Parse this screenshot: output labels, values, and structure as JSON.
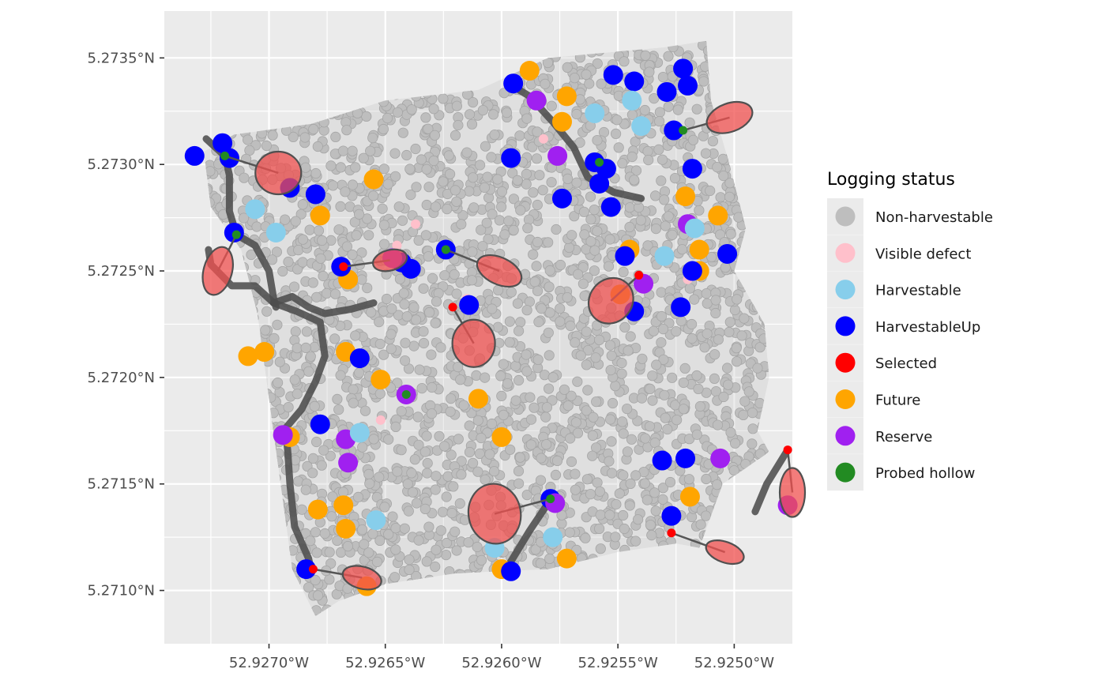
{
  "chart_data": {
    "type": "scatter",
    "title": "",
    "xlabel": "",
    "ylabel": "",
    "x_axis": {
      "ticks": [
        52.927,
        52.9265,
        52.926,
        52.9255,
        52.925
      ],
      "tick_labels": [
        "52.9270°W",
        "52.9265°W",
        "52.9260°W",
        "52.9255°W",
        "52.9250°W"
      ],
      "lim": [
        52.92745,
        52.92475
      ]
    },
    "y_axis": {
      "ticks": [
        5.271,
        5.2715,
        5.272,
        5.2725,
        5.273,
        5.2735
      ],
      "tick_labels": [
        "5.2710°N",
        "5.2715°N",
        "5.2720°N",
        "5.2725°N",
        "5.2730°N",
        "5.2735°N"
      ],
      "lim": [
        5.27075,
        5.27372
      ]
    },
    "grid": true,
    "legend": {
      "title": "Logging status",
      "position": "right",
      "entries": [
        {
          "label": "Non-harvestable",
          "color": "#bebebe"
        },
        {
          "label": "Visible defect",
          "color": "#ffc0cb"
        },
        {
          "label": "Harvestable",
          "color": "#87ceeb"
        },
        {
          "label": "HarvestableUp",
          "color": "#0000ff"
        },
        {
          "label": "Selected",
          "color": "#ff0000"
        },
        {
          "label": "Future",
          "color": "#ffa500"
        },
        {
          "label": "Reserve",
          "color": "#a020f0"
        },
        {
          "label": "Probed hollow",
          "color": "#228b22"
        }
      ]
    },
    "background_cloud": {
      "status": "Non-harvestable",
      "polygon": [
        [
          52.92728,
          5.27306
        ],
        [
          52.92715,
          5.27314
        ],
        [
          52.92682,
          5.27319
        ],
        [
          52.9265,
          5.2733
        ],
        [
          52.9261,
          5.27335
        ],
        [
          52.9258,
          5.2735
        ],
        [
          52.9253,
          5.27355
        ],
        [
          52.92512,
          5.27358
        ],
        [
          52.9251,
          5.2733
        ],
        [
          52.92502,
          5.273
        ],
        [
          52.92495,
          5.2727
        ],
        [
          52.925,
          5.2725
        ],
        [
          52.92487,
          5.27225
        ],
        [
          52.92485,
          5.272
        ],
        [
          52.9249,
          5.27175
        ],
        [
          52.92485,
          5.27165
        ],
        [
          52.92505,
          5.2715
        ],
        [
          52.92515,
          5.2712
        ],
        [
          52.92525,
          5.27122
        ],
        [
          52.9255,
          5.27118
        ],
        [
          52.9258,
          5.2711
        ],
        [
          52.9262,
          5.27108
        ],
        [
          52.9265,
          5.27103
        ],
        [
          52.9267,
          5.27095
        ],
        [
          52.9268,
          5.27088
        ],
        [
          52.9269,
          5.2711
        ],
        [
          52.927,
          5.2719
        ],
        [
          52.92705,
          5.2723
        ],
        [
          52.92712,
          5.2726
        ],
        [
          52.92725,
          5.2728
        ],
        [
          52.92728,
          5.27306
        ]
      ],
      "scattered_light_pink": [
        [
          52.92582,
          5.27312
        ],
        [
          52.92637,
          5.27272
        ],
        [
          52.92645,
          5.27262
        ],
        [
          52.92615,
          5.27237
        ],
        [
          52.92652,
          5.2718
        ],
        [
          52.9252,
          5.27246
        ],
        [
          52.92516,
          5.27248
        ]
      ]
    },
    "trees": [
      {
        "x": 52.92732,
        "y": 5.27304,
        "status": "HarvestableUp"
      },
      {
        "x": 52.9272,
        "y": 5.2731,
        "status": "HarvestableUp"
      },
      {
        "x": 52.92717,
        "y": 5.27303,
        "status": "HarvestableUp"
      },
      {
        "x": 52.92691,
        "y": 5.27289,
        "status": "HarvestableUp"
      },
      {
        "x": 52.9268,
        "y": 5.27286,
        "status": "HarvestableUp"
      },
      {
        "x": 52.92706,
        "y": 5.27279,
        "status": "Harvestable"
      },
      {
        "x": 52.92697,
        "y": 5.27268,
        "status": "Harvestable"
      },
      {
        "x": 52.92715,
        "y": 5.27268,
        "status": "HarvestableUp"
      },
      {
        "x": 52.92678,
        "y": 5.27276,
        "status": "Future"
      },
      {
        "x": 52.92655,
        "y": 5.27293,
        "status": "Future"
      },
      {
        "x": 52.92666,
        "y": 5.27246,
        "status": "Future"
      },
      {
        "x": 52.92669,
        "y": 5.27252,
        "status": "HarvestableUp"
      },
      {
        "x": 52.92643,
        "y": 5.27254,
        "status": "HarvestableUp"
      },
      {
        "x": 52.92647,
        "y": 5.27256,
        "status": "Reserve"
      },
      {
        "x": 52.92639,
        "y": 5.27251,
        "status": "HarvestableUp"
      },
      {
        "x": 52.92624,
        "y": 5.2726,
        "status": "HarvestableUp"
      },
      {
        "x": 52.92614,
        "y": 5.27234,
        "status": "HarvestableUp"
      },
      {
        "x": 52.92709,
        "y": 5.2721,
        "status": "Future"
      },
      {
        "x": 52.92702,
        "y": 5.27212,
        "status": "Future"
      },
      {
        "x": 52.92667,
        "y": 5.27212,
        "status": "Future"
      },
      {
        "x": 52.92661,
        "y": 5.27209,
        "status": "HarvestableUp"
      },
      {
        "x": 52.92652,
        "y": 5.27199,
        "status": "Future"
      },
      {
        "x": 52.92641,
        "y": 5.27192,
        "status": "Reserve"
      },
      {
        "x": 52.9261,
        "y": 5.2719,
        "status": "Future"
      },
      {
        "x": 52.92678,
        "y": 5.27178,
        "status": "HarvestableUp"
      },
      {
        "x": 52.92691,
        "y": 5.27172,
        "status": "Future"
      },
      {
        "x": 52.92694,
        "y": 5.27173,
        "status": "Reserve"
      },
      {
        "x": 52.92667,
        "y": 5.27171,
        "status": "Reserve"
      },
      {
        "x": 52.92661,
        "y": 5.27174,
        "status": "Harvestable"
      },
      {
        "x": 52.92666,
        "y": 5.2716,
        "status": "Reserve"
      },
      {
        "x": 52.926,
        "y": 5.27172,
        "status": "Future"
      },
      {
        "x": 52.92679,
        "y": 5.27138,
        "status": "Future"
      },
      {
        "x": 52.92668,
        "y": 5.2714,
        "status": "Future"
      },
      {
        "x": 52.92667,
        "y": 5.27129,
        "status": "Future"
      },
      {
        "x": 52.92654,
        "y": 5.27133,
        "status": "Harvestable"
      },
      {
        "x": 52.92684,
        "y": 5.2711,
        "status": "HarvestableUp"
      },
      {
        "x": 52.92658,
        "y": 5.27102,
        "status": "Future"
      },
      {
        "x": 52.926,
        "y": 5.2711,
        "status": "Future"
      },
      {
        "x": 52.92596,
        "y": 5.27109,
        "status": "HarvestableUp"
      },
      {
        "x": 52.92603,
        "y": 5.2712,
        "status": "Harvestable"
      },
      {
        "x": 52.92579,
        "y": 5.27143,
        "status": "HarvestableUp"
      },
      {
        "x": 52.92577,
        "y": 5.27141,
        "status": "Reserve"
      },
      {
        "x": 52.92578,
        "y": 5.27125,
        "status": "Harvestable"
      },
      {
        "x": 52.92572,
        "y": 5.27115,
        "status": "Future"
      },
      {
        "x": 52.92595,
        "y": 5.27338,
        "status": "HarvestableUp"
      },
      {
        "x": 52.92588,
        "y": 5.27344,
        "status": "Future"
      },
      {
        "x": 52.92585,
        "y": 5.2733,
        "status": "Reserve"
      },
      {
        "x": 52.92572,
        "y": 5.27332,
        "status": "Future"
      },
      {
        "x": 52.92574,
        "y": 5.2732,
        "status": "Future"
      },
      {
        "x": 52.92596,
        "y": 5.27303,
        "status": "HarvestableUp"
      },
      {
        "x": 52.92576,
        "y": 5.27304,
        "status": "Reserve"
      },
      {
        "x": 52.9256,
        "y": 5.27324,
        "status": "Harvestable"
      },
      {
        "x": 52.9256,
        "y": 5.27301,
        "status": "HarvestableUp"
      },
      {
        "x": 52.92555,
        "y": 5.27298,
        "status": "HarvestableUp"
      },
      {
        "x": 52.92558,
        "y": 5.27291,
        "status": "HarvestableUp"
      },
      {
        "x": 52.92552,
        "y": 5.27342,
        "status": "HarvestableUp"
      },
      {
        "x": 52.92543,
        "y": 5.27339,
        "status": "HarvestableUp"
      },
      {
        "x": 52.92544,
        "y": 5.2733,
        "status": "Harvestable"
      },
      {
        "x": 52.92529,
        "y": 5.27334,
        "status": "HarvestableUp"
      },
      {
        "x": 52.92522,
        "y": 5.27345,
        "status": "HarvestableUp"
      },
      {
        "x": 52.9252,
        "y": 5.27337,
        "status": "HarvestableUp"
      },
      {
        "x": 52.9254,
        "y": 5.27318,
        "status": "Harvestable"
      },
      {
        "x": 52.92526,
        "y": 5.27316,
        "status": "HarvestableUp"
      },
      {
        "x": 52.92518,
        "y": 5.27298,
        "status": "HarvestableUp"
      },
      {
        "x": 52.92574,
        "y": 5.27284,
        "status": "HarvestableUp"
      },
      {
        "x": 52.92553,
        "y": 5.2728,
        "status": "HarvestableUp"
      },
      {
        "x": 52.92521,
        "y": 5.27285,
        "status": "Future"
      },
      {
        "x": 52.92507,
        "y": 5.27276,
        "status": "Future"
      },
      {
        "x": 52.9252,
        "y": 5.27272,
        "status": "Reserve"
      },
      {
        "x": 52.92517,
        "y": 5.2727,
        "status": "Harvestable"
      },
      {
        "x": 52.92545,
        "y": 5.2726,
        "status": "Future"
      },
      {
        "x": 52.92547,
        "y": 5.27257,
        "status": "HarvestableUp"
      },
      {
        "x": 52.9253,
        "y": 5.27257,
        "status": "Harvestable"
      },
      {
        "x": 52.92515,
        "y": 5.2726,
        "status": "Future"
      },
      {
        "x": 52.92515,
        "y": 5.2725,
        "status": "Future"
      },
      {
        "x": 52.92518,
        "y": 5.2725,
        "status": "HarvestableUp"
      },
      {
        "x": 52.92503,
        "y": 5.27258,
        "status": "HarvestableUp"
      },
      {
        "x": 52.92539,
        "y": 5.27244,
        "status": "Reserve"
      },
      {
        "x": 52.92549,
        "y": 5.27239,
        "status": "Future"
      },
      {
        "x": 52.92543,
        "y": 5.27231,
        "status": "HarvestableUp"
      },
      {
        "x": 52.92523,
        "y": 5.27233,
        "status": "HarvestableUp"
      },
      {
        "x": 52.92531,
        "y": 5.27161,
        "status": "HarvestableUp"
      },
      {
        "x": 52.92521,
        "y": 5.27162,
        "status": "HarvestableUp"
      },
      {
        "x": 52.92506,
        "y": 5.27162,
        "status": "Reserve"
      },
      {
        "x": 52.92519,
        "y": 5.27144,
        "status": "Future"
      },
      {
        "x": 52.92527,
        "y": 5.27135,
        "status": "HarvestableUp"
      },
      {
        "x": 52.92477,
        "y": 5.2714,
        "status": "Reserve"
      }
    ],
    "selected_trees": [
      {
        "x": 52.92668,
        "y": 5.27252,
        "status": "Selected",
        "gap": {
          "x": 52.92648,
          "y": 5.27255,
          "rx": 22,
          "ry": 13,
          "rot": -15
        }
      },
      {
        "x": 52.92621,
        "y": 5.27233,
        "status": "Selected",
        "gap": {
          "x": 52.92612,
          "y": 5.27216,
          "rx": 27,
          "ry": 30,
          "rot": 0
        }
      },
      {
        "x": 52.92541,
        "y": 5.27248,
        "status": "Selected",
        "gap": {
          "x": 52.92553,
          "y": 5.27236,
          "rx": 27,
          "ry": 30,
          "rot": 40
        }
      },
      {
        "x": 52.92681,
        "y": 5.2711,
        "status": "Selected",
        "gap": {
          "x": 52.9266,
          "y": 5.27106,
          "rx": 25,
          "ry": 14,
          "rot": 15
        }
      },
      {
        "x": 52.92527,
        "y": 5.27127,
        "status": "Selected",
        "gap": {
          "x": 52.92504,
          "y": 5.27118,
          "rx": 25,
          "ry": 13,
          "rot": 20
        }
      },
      {
        "x": 52.92477,
        "y": 5.27166,
        "status": "Selected",
        "gap": {
          "x": 52.92475,
          "y": 5.27146,
          "rx": 16,
          "ry": 31,
          "rot": 0
        }
      }
    ],
    "probed_hollows": [
      {
        "x": 52.92719,
        "y": 5.27304,
        "gap": {
          "x": 52.92696,
          "y": 5.27296,
          "rx": 29,
          "ry": 27,
          "rot": 0
        }
      },
      {
        "x": 52.92714,
        "y": 5.27267,
        "gap": {
          "x": 52.92722,
          "y": 5.2725,
          "rx": 18,
          "ry": 31,
          "rot": 15
        }
      },
      {
        "x": 52.92624,
        "y": 5.2726,
        "gap": {
          "x": 52.92601,
          "y": 5.2725,
          "rx": 30,
          "ry": 17,
          "rot": 25
        }
      },
      {
        "x": 52.92558,
        "y": 5.27301,
        "gap": null
      },
      {
        "x": 52.92641,
        "y": 5.27192,
        "gap": null
      },
      {
        "x": 52.92522,
        "y": 5.27316,
        "gap": {
          "x": 52.92502,
          "y": 5.27322,
          "rx": 30,
          "ry": 18,
          "rot": -20
        }
      },
      {
        "x": 52.92579,
        "y": 5.27143,
        "gap": {
          "x": 52.92603,
          "y": 5.27136,
          "rx": 33,
          "ry": 38,
          "rot": -10
        }
      }
    ],
    "skid_trails": [
      [
        [
          52.92727,
          5.27312
        ],
        [
          52.92719,
          5.27304
        ],
        [
          52.92717,
          5.27295
        ],
        [
          52.92717,
          5.27278
        ],
        [
          52.92714,
          5.27267
        ],
        [
          52.92706,
          5.27262
        ],
        [
          52.927,
          5.2725
        ],
        [
          52.92698,
          5.27237
        ],
        [
          52.92697,
          5.27233
        ]
      ],
      [
        [
          52.92726,
          5.2726
        ],
        [
          52.92725,
          5.27253
        ],
        [
          52.92716,
          5.27243
        ],
        [
          52.92706,
          5.27243
        ],
        [
          52.92698,
          5.27235
        ]
      ],
      [
        [
          52.92698,
          5.27235
        ],
        [
          52.92688,
          5.27231
        ],
        [
          52.92678,
          5.27226
        ],
        [
          52.92676,
          5.2721
        ],
        [
          52.9268,
          5.27198
        ],
        [
          52.92686,
          5.27185
        ],
        [
          52.92693,
          5.27176
        ],
        [
          52.92692,
          5.27166
        ],
        [
          52.92691,
          5.2715
        ],
        [
          52.92689,
          5.2713
        ],
        [
          52.92683,
          5.27115
        ],
        [
          52.92682,
          5.2711
        ]
      ],
      [
        [
          52.92698,
          5.27235
        ],
        [
          52.9269,
          5.27238
        ],
        [
          52.92683,
          5.27233
        ],
        [
          52.92676,
          5.2723
        ],
        [
          52.92665,
          5.27232
        ],
        [
          52.92655,
          5.27235
        ]
      ],
      [
        [
          52.92597,
          5.27338
        ],
        [
          52.92588,
          5.27332
        ],
        [
          52.92578,
          5.2732
        ],
        [
          52.92569,
          5.27308
        ],
        [
          52.92563,
          5.27294
        ],
        [
          52.92552,
          5.27287
        ],
        [
          52.9254,
          5.27284
        ]
      ],
      [
        [
          52.9258,
          5.27141
        ],
        [
          52.92588,
          5.27128
        ],
        [
          52.92598,
          5.2711
        ]
      ],
      [
        [
          52.92477,
          5.27166
        ],
        [
          52.92486,
          5.2715
        ],
        [
          52.92491,
          5.27137
        ]
      ]
    ]
  }
}
